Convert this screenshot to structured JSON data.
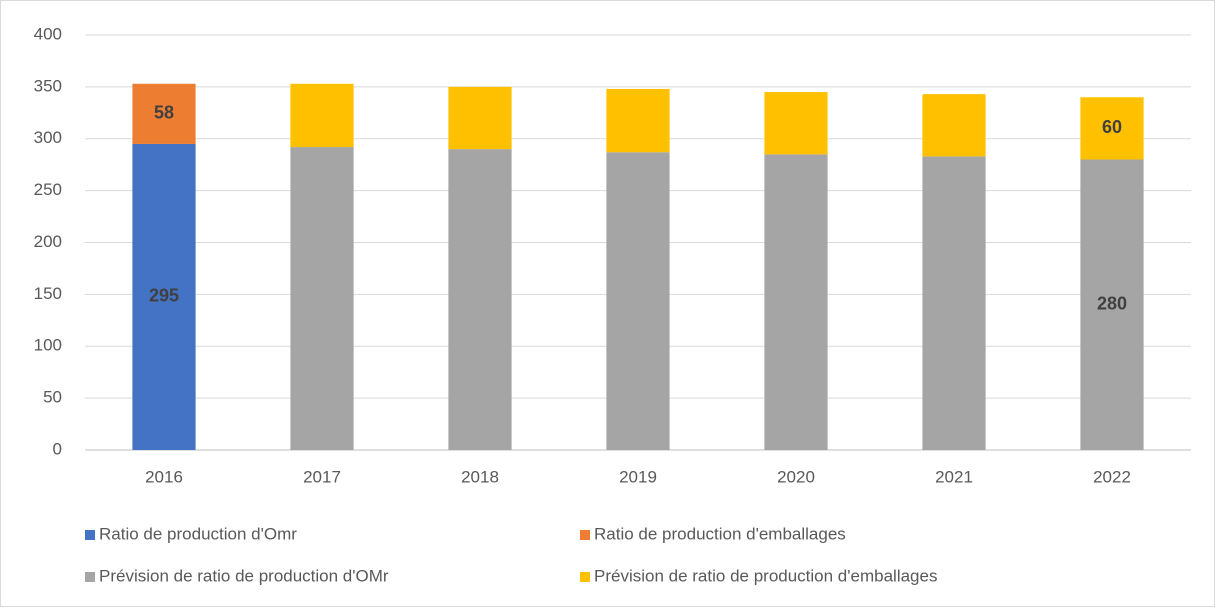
{
  "chart_data": {
    "type": "bar",
    "stacked": true,
    "categories": [
      "2016",
      "2017",
      "2018",
      "2019",
      "2020",
      "2021",
      "2022"
    ],
    "series": [
      {
        "name": "Ratio de production d'Omr",
        "color": "#4472c4",
        "values": [
          295,
          null,
          null,
          null,
          null,
          null,
          null
        ],
        "value_labels": [
          "295",
          null,
          null,
          null,
          null,
          null,
          null
        ]
      },
      {
        "name": "Ratio de production d'emballages",
        "color": "#ed7d31",
        "values": [
          58,
          null,
          null,
          null,
          null,
          null,
          null
        ],
        "value_labels": [
          "58",
          null,
          null,
          null,
          null,
          null,
          null
        ]
      },
      {
        "name": "Prévision de ratio de production d'OMr",
        "color": "#a5a5a5",
        "values": [
          null,
          292,
          290,
          287,
          285,
          283,
          280
        ],
        "value_labels": [
          null,
          null,
          null,
          null,
          null,
          null,
          "280"
        ]
      },
      {
        "name": "Prévision de ratio de production d'emballages",
        "color": "#ffc000",
        "values": [
          null,
          61,
          60,
          61,
          60,
          60,
          60
        ],
        "value_labels": [
          null,
          null,
          null,
          null,
          null,
          null,
          "60"
        ]
      }
    ],
    "ylim": [
      0,
      400
    ],
    "yticks": [
      0,
      50,
      100,
      150,
      200,
      250,
      300,
      350,
      400
    ],
    "grid": true
  }
}
